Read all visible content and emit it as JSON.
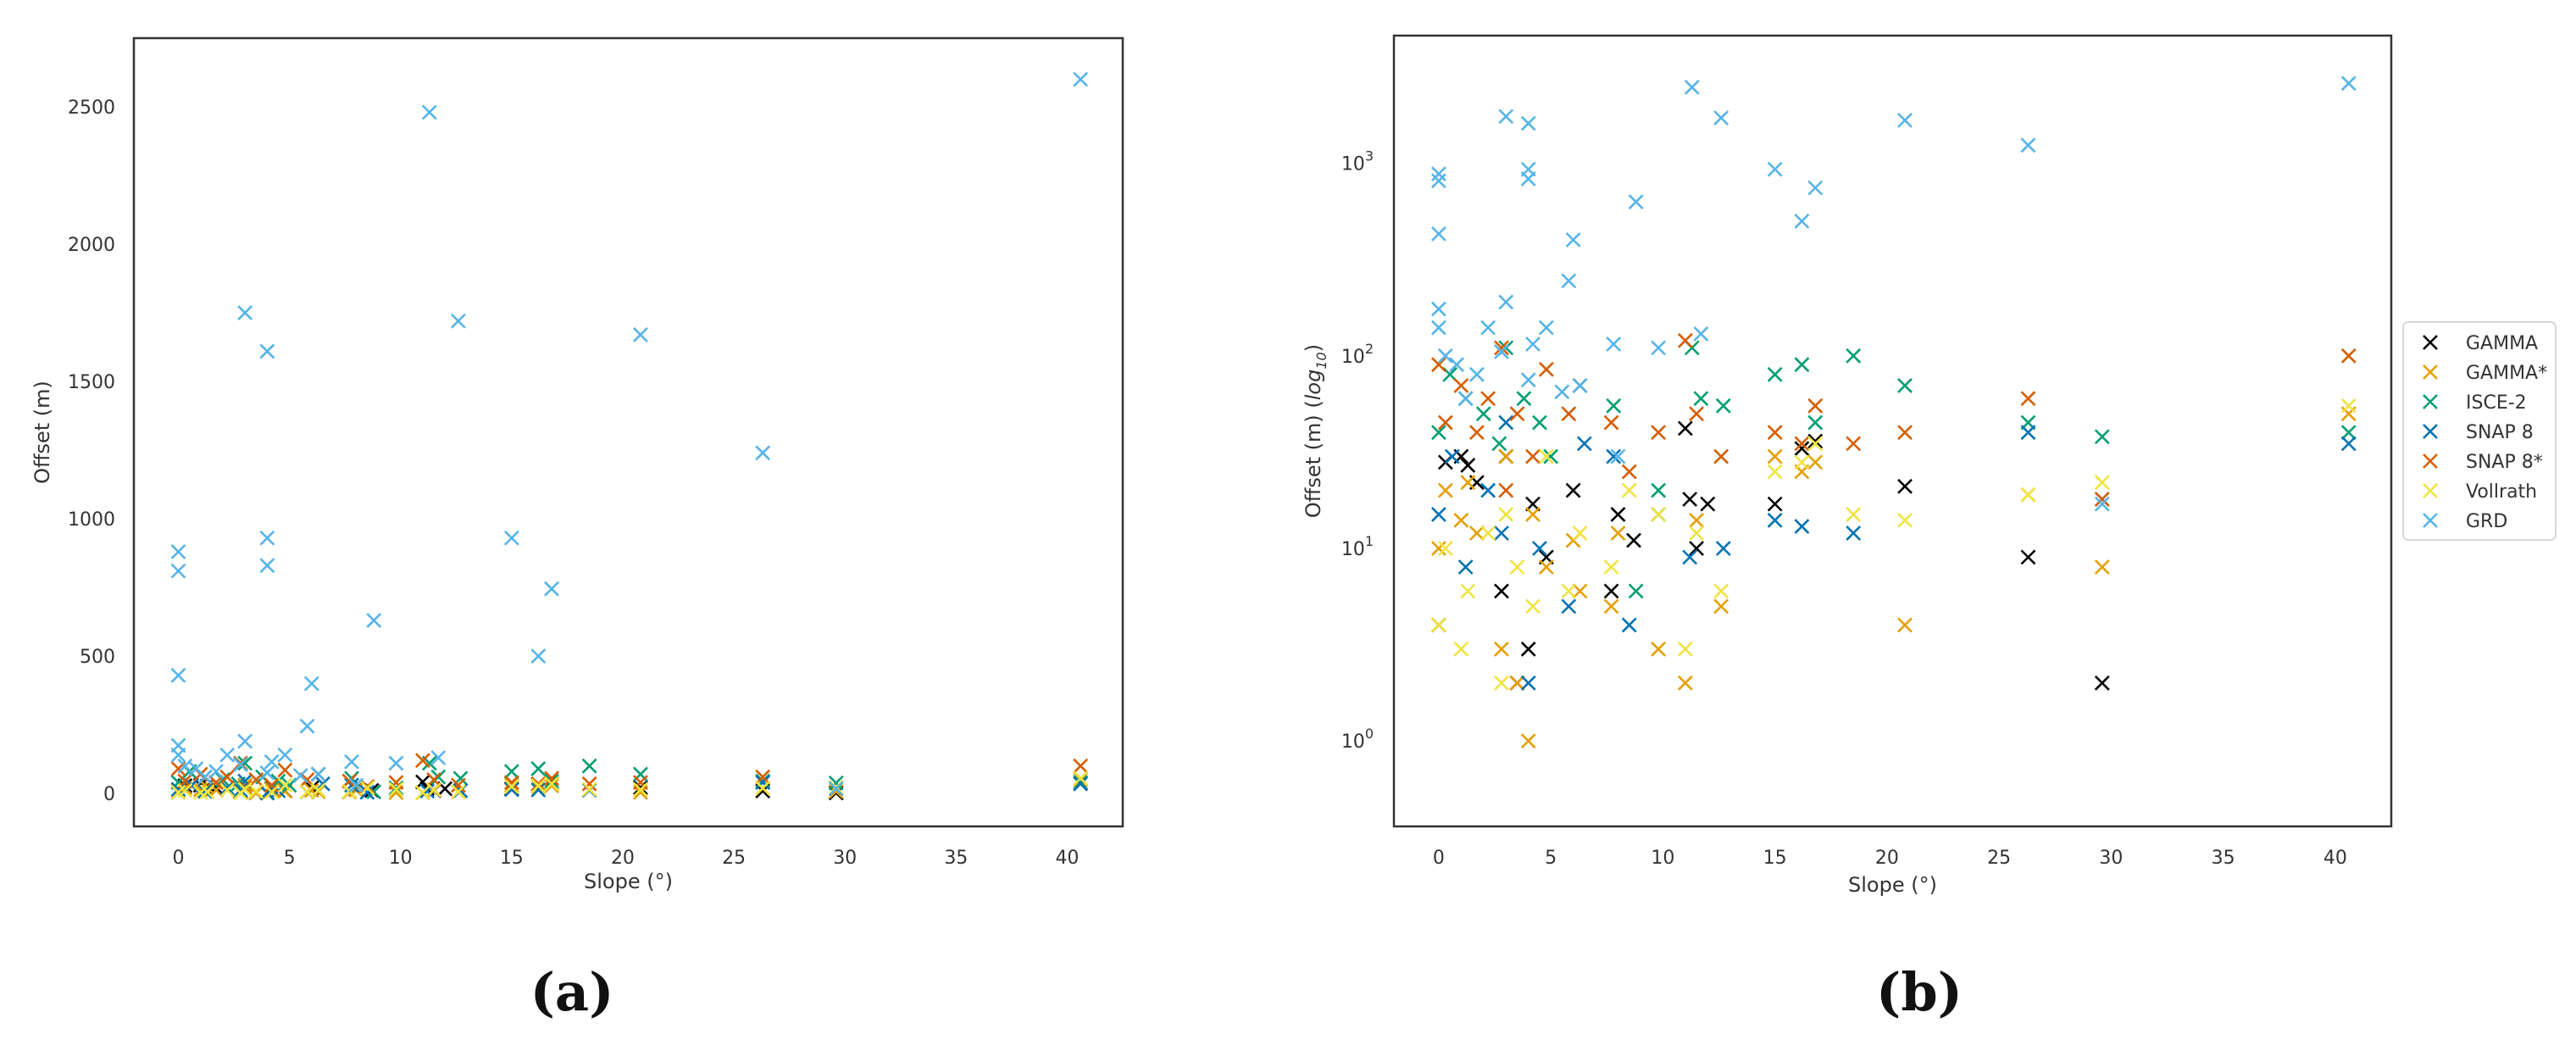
{
  "chart_data": [
    {
      "type": "scatter",
      "panel_label": "(a)",
      "xlabel": "Slope (°)",
      "ylabel": "Offset (m)",
      "xlim": [
        -2,
        42.5
      ],
      "ylim": [
        -120,
        2750
      ],
      "yscale": "linear",
      "xticks": [
        0,
        5,
        10,
        15,
        20,
        25,
        30,
        35,
        40
      ],
      "yticks": [
        0,
        500,
        1000,
        1500,
        2000,
        2500
      ],
      "grid": false,
      "series": [
        {
          "color": "#000000",
          "x": [
            0.0,
            0.3,
            1.0,
            1.3,
            1.7,
            2.8,
            3.0,
            3.5,
            4.0,
            4.2,
            4.8,
            6.0,
            7.7,
            8.0,
            8.7,
            11.0,
            11.2,
            11.5,
            12.0,
            15.0,
            16.2,
            16.8,
            20.8,
            26.3,
            29.6
          ],
          "y": [
            4,
            28,
            30,
            27,
            22,
            6,
            30,
            2,
            3,
            17,
            9,
            20,
            6,
            15,
            11,
            42,
            18,
            10,
            17,
            17,
            33,
            36,
            21,
            9,
            2
          ]
        },
        {
          "color": "#E69F00",
          "x": [
            0.0,
            0.3,
            1.0,
            1.3,
            1.7,
            2.8,
            3.0,
            3.5,
            4.0,
            4.2,
            4.8,
            6.0,
            6.3,
            7.7,
            8.0,
            9.8,
            11.0,
            11.5,
            12.6,
            15.0,
            16.2,
            16.8,
            20.8,
            26.3,
            29.6,
            40.6
          ],
          "y": [
            10,
            20,
            14,
            22,
            12,
            3,
            30,
            2,
            1,
            15,
            8,
            11,
            6,
            5,
            12,
            3,
            2,
            14,
            5,
            30,
            25,
            28,
            4,
            19,
            8,
            50
          ]
        },
        {
          "color": "#009E73",
          "x": [
            0.0,
            0.5,
            1.2,
            2.0,
            2.7,
            3.0,
            3.8,
            4.5,
            5.0,
            6.3,
            7.8,
            8.8,
            9.8,
            11.3,
            11.7,
            12.7,
            15.0,
            16.2,
            16.8,
            18.5,
            20.8,
            26.3,
            29.6,
            40.6
          ],
          "y": [
            40,
            80,
            60,
            50,
            35,
            110,
            60,
            45,
            30,
            70,
            55,
            6,
            20,
            110,
            60,
            55,
            80,
            90,
            45,
            100,
            70,
            45,
            38,
            40
          ]
        },
        {
          "color": "#0072B2",
          "x": [
            0.0,
            0.6,
            1.2,
            2.2,
            2.8,
            3.0,
            4.0,
            4.5,
            5.8,
            6.5,
            7.8,
            8.5,
            9.8,
            11.2,
            12.7,
            15.0,
            16.2,
            18.5,
            26.3,
            29.6,
            40.6
          ],
          "y": [
            15,
            30,
            8,
            20,
            12,
            45,
            2,
            10,
            5,
            35,
            30,
            4,
            15,
            9,
            10,
            14,
            13,
            12,
            40,
            18,
            35
          ]
        },
        {
          "color": "#D55E00",
          "x": [
            0.0,
            0.3,
            1.0,
            1.7,
            2.2,
            2.8,
            3.0,
            3.5,
            4.2,
            4.8,
            5.8,
            6.3,
            7.7,
            8.5,
            9.8,
            11.0,
            11.5,
            12.6,
            15.0,
            16.2,
            16.8,
            18.5,
            20.8,
            26.3,
            29.6,
            40.6
          ],
          "y": [
            90,
            45,
            70,
            40,
            60,
            110,
            20,
            50,
            30,
            85,
            50,
            70,
            45,
            25,
            40,
            120,
            50,
            30,
            40,
            35,
            55,
            35,
            40,
            60,
            18,
            100
          ]
        },
        {
          "color": "#F0E442",
          "x": [
            0.0,
            0.3,
            1.0,
            1.3,
            2.2,
            2.8,
            3.0,
            3.5,
            4.2,
            4.8,
            5.8,
            6.3,
            7.7,
            8.5,
            9.8,
            11.0,
            11.5,
            12.6,
            15.0,
            16.2,
            16.8,
            18.5,
            20.8,
            26.3,
            29.6,
            40.6
          ],
          "y": [
            4,
            10,
            3,
            6,
            12,
            2,
            15,
            8,
            5,
            30,
            6,
            12,
            8,
            20,
            15,
            3,
            12,
            6,
            25,
            28,
            35,
            15,
            14,
            19,
            22,
            55
          ]
        },
        {
          "color": "#56B4E9",
          "x": [
            0.0,
            0.0,
            0.0,
            0.0,
            0.0,
            0.3,
            0.8,
            1.2,
            1.7,
            2.2,
            2.8,
            3.0,
            3.0,
            4.0,
            4.0,
            4.0,
            4.0,
            4.2,
            4.8,
            5.5,
            5.8,
            6.0,
            6.3,
            7.8,
            8.0,
            8.8,
            9.8,
            11.3,
            11.7,
            12.6,
            15.0,
            16.2,
            16.8,
            20.8,
            26.3,
            29.6,
            40.6
          ],
          "y": [
            880,
            810,
            430,
            175,
            140,
            100,
            90,
            60,
            80,
            140,
            105,
            1750,
            190,
            1610,
            930,
            830,
            75,
            115,
            140,
            65,
            245,
            400,
            70,
            115,
            30,
            630,
            110,
            2480,
            130,
            1720,
            930,
            500,
            745,
            1670,
            1240,
            17,
            2600
          ]
        }
      ]
    },
    {
      "type": "scatter",
      "panel_label": "(b)",
      "xlabel": "Slope (°)",
      "ylabel": "Offset (m) (log10)",
      "xlim": [
        -2,
        42.5
      ],
      "yscale": "log",
      "ylim": [
        0.36,
        4600
      ],
      "xticks": [
        0,
        5,
        10,
        15,
        20,
        25,
        30,
        35,
        40
      ],
      "yticks": [
        {
          "value": 1,
          "base": "10",
          "exp": "0"
        },
        {
          "value": 10,
          "base": "10",
          "exp": "1"
        },
        {
          "value": 100,
          "base": "10",
          "exp": "2"
        },
        {
          "value": 1000,
          "base": "10",
          "exp": "3"
        }
      ],
      "grid": false,
      "legend": {
        "placement": "outside-right",
        "entries": [
          {
            "label": "GAMMA",
            "color": "#000000"
          },
          {
            "label": "GAMMA*",
            "color": "#E69F00"
          },
          {
            "label": "ISCE-2",
            "color": "#009E73"
          },
          {
            "label": "SNAP 8",
            "color": "#0072B2"
          },
          {
            "label": "SNAP 8*",
            "color": "#D55E00"
          },
          {
            "label": "Vollrath",
            "color": "#F0E442"
          },
          {
            "label": "GRD",
            "color": "#56B4E9"
          }
        ]
      },
      "series": [
        {
          "name": "GAMMA",
          "color": "#000000",
          "x": [
            0.0,
            0.3,
            1.0,
            1.3,
            1.7,
            2.8,
            3.0,
            3.5,
            4.0,
            4.2,
            4.8,
            6.0,
            7.7,
            8.0,
            8.7,
            11.0,
            11.2,
            11.5,
            12.0,
            15.0,
            16.2,
            16.8,
            20.8,
            26.3,
            29.6
          ],
          "y": [
            4,
            28,
            30,
            27,
            22,
            6,
            30,
            2,
            3,
            17,
            9,
            20,
            6,
            15,
            11,
            42,
            18,
            10,
            17,
            17,
            33,
            36,
            21,
            9,
            2
          ]
        },
        {
          "name": "GAMMA*",
          "color": "#E69F00",
          "x": [
            0.0,
            0.3,
            1.0,
            1.3,
            1.7,
            2.8,
            3.0,
            3.5,
            4.0,
            4.2,
            4.8,
            6.0,
            6.3,
            7.7,
            8.0,
            9.8,
            11.0,
            11.5,
            12.6,
            15.0,
            16.2,
            16.8,
            20.8,
            26.3,
            29.6,
            40.6
          ],
          "y": [
            10,
            20,
            14,
            22,
            12,
            3,
            30,
            2,
            1,
            15,
            8,
            11,
            6,
            5,
            12,
            3,
            2,
            14,
            5,
            30,
            25,
            28,
            4,
            19,
            8,
            50
          ]
        },
        {
          "name": "ISCE-2",
          "color": "#009E73",
          "x": [
            0.0,
            0.5,
            1.2,
            2.0,
            2.7,
            3.0,
            3.8,
            4.5,
            5.0,
            6.3,
            7.8,
            8.8,
            9.8,
            11.3,
            11.7,
            12.7,
            15.0,
            16.2,
            16.8,
            18.5,
            20.8,
            26.3,
            29.6,
            40.6
          ],
          "y": [
            40,
            80,
            60,
            50,
            35,
            110,
            60,
            45,
            30,
            70,
            55,
            6,
            20,
            110,
            60,
            55,
            80,
            90,
            45,
            100,
            70,
            45,
            38,
            40
          ]
        },
        {
          "name": "SNAP 8",
          "color": "#0072B2",
          "x": [
            0.0,
            0.6,
            1.2,
            2.2,
            2.8,
            3.0,
            4.0,
            4.5,
            5.8,
            6.5,
            7.8,
            8.5,
            9.8,
            11.2,
            12.7,
            15.0,
            16.2,
            18.5,
            26.3,
            29.6,
            40.6
          ],
          "y": [
            15,
            30,
            8,
            20,
            12,
            45,
            2,
            10,
            5,
            35,
            30,
            4,
            15,
            9,
            10,
            14,
            13,
            12,
            40,
            18,
            35
          ]
        },
        {
          "name": "SNAP 8*",
          "color": "#D55E00",
          "x": [
            0.0,
            0.3,
            1.0,
            1.7,
            2.2,
            2.8,
            3.0,
            3.5,
            4.2,
            4.8,
            5.8,
            6.3,
            7.7,
            8.5,
            9.8,
            11.0,
            11.5,
            12.6,
            15.0,
            16.2,
            16.8,
            18.5,
            20.8,
            26.3,
            29.6,
            40.6
          ],
          "y": [
            90,
            45,
            70,
            40,
            60,
            110,
            20,
            50,
            30,
            85,
            50,
            70,
            45,
            25,
            40,
            120,
            50,
            30,
            40,
            35,
            55,
            35,
            40,
            60,
            18,
            100
          ]
        },
        {
          "name": "Vollrath",
          "color": "#F0E442",
          "x": [
            0.0,
            0.3,
            1.0,
            1.3,
            2.2,
            2.8,
            3.0,
            3.5,
            4.2,
            4.8,
            5.8,
            6.3,
            7.7,
            8.5,
            9.8,
            11.0,
            11.5,
            12.6,
            15.0,
            16.2,
            16.8,
            18.5,
            20.8,
            26.3,
            29.6,
            40.6
          ],
          "y": [
            4,
            10,
            3,
            6,
            12,
            2,
            15,
            8,
            5,
            30,
            6,
            12,
            8,
            20,
            15,
            3,
            12,
            6,
            25,
            28,
            35,
            15,
            14,
            19,
            22,
            55
          ]
        },
        {
          "name": "GRD",
          "color": "#56B4E9",
          "x": [
            0.0,
            0.0,
            0.0,
            0.0,
            0.0,
            0.3,
            0.8,
            1.2,
            1.7,
            2.2,
            2.8,
            3.0,
            3.0,
            4.0,
            4.0,
            4.0,
            4.0,
            4.2,
            4.8,
            5.5,
            5.8,
            6.0,
            6.3,
            7.8,
            8.0,
            8.8,
            9.8,
            11.3,
            11.7,
            12.6,
            15.0,
            16.2,
            16.8,
            20.8,
            26.3,
            29.6,
            40.6
          ],
          "y": [
            880,
            810,
            430,
            175,
            140,
            100,
            90,
            60,
            80,
            140,
            105,
            1750,
            190,
            1610,
            930,
            830,
            75,
            115,
            140,
            65,
            245,
            400,
            70,
            115,
            30,
            630,
            110,
            2480,
            130,
            1720,
            930,
            500,
            745,
            1670,
            1240,
            17,
            2600
          ]
        }
      ]
    }
  ]
}
